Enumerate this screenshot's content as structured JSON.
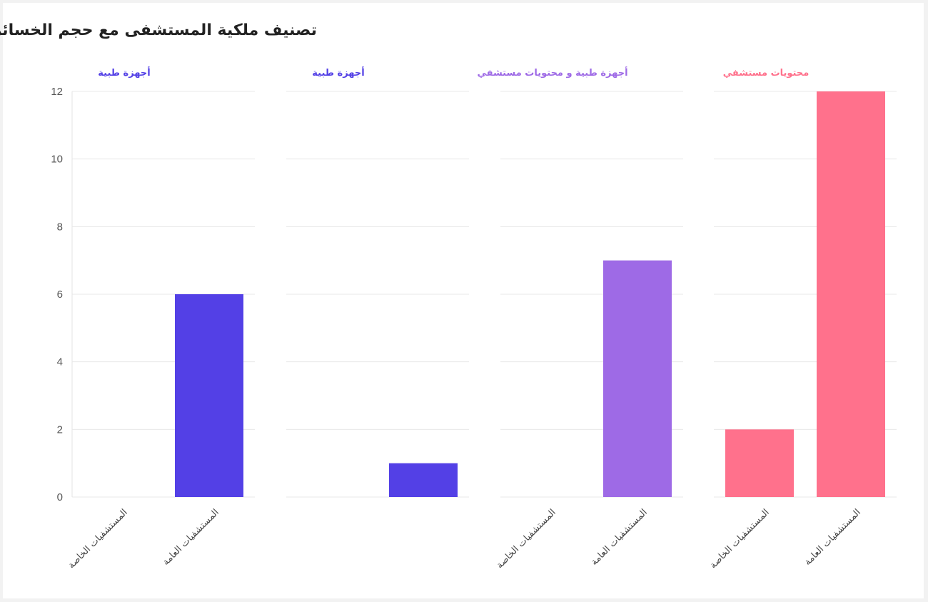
{
  "chart_data": {
    "type": "bar",
    "title": "تصنيف ملكية المستشفى مع حجم الخسائر",
    "ylim": [
      0,
      12
    ],
    "yticks": [
      0,
      2,
      4,
      6,
      8,
      10,
      12
    ],
    "grid": true,
    "panels": [
      {
        "title": "أجهزة طبية",
        "color": "#5340e6",
        "categories": [
          "المستشفيات الخاصة",
          "المستشفيات العامة"
        ],
        "values": [
          0,
          6
        ]
      },
      {
        "title": "أجهزة طبية",
        "color": "#5340e6",
        "categories": [
          "",
          ""
        ],
        "values": [
          0,
          1
        ]
      },
      {
        "title": "أجهزة طبية و محتويات مستشفي",
        "color": "#9e6ae6",
        "categories": [
          "المستشفيات الخاصة",
          "المستشفيات العامة"
        ],
        "values": [
          0,
          7
        ]
      },
      {
        "title": "محتويات مستشفي",
        "color": "#ff718c",
        "categories": [
          "المستشفيات الخاصة",
          "المستشفيات العامة"
        ],
        "values": [
          2,
          12
        ]
      }
    ]
  }
}
